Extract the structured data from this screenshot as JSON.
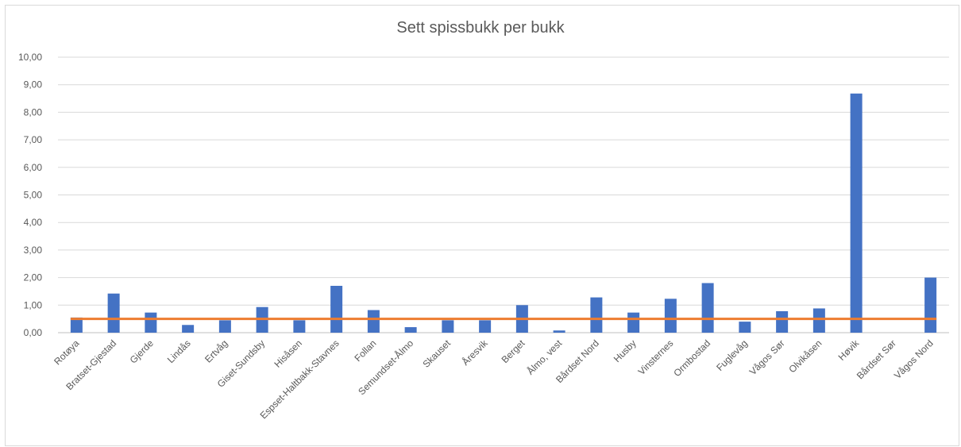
{
  "chart_data": {
    "type": "bar",
    "title": "Sett spissbukk per bukk",
    "categories": [
      "Rotøya",
      "Bratset-Gjestad",
      "Gjerde",
      "Lindås",
      "Ertvåg",
      "Giset-Sundsby",
      "Hisåsen",
      "Espset-Haltbakk-Stavnes",
      "Follan",
      "Semundset-Ålmo",
      "Skauset",
      "Åresvik",
      "Berget",
      "Ålmo, vest",
      "Bårdset Nord",
      "Husby",
      "Vinsternes",
      "Ormbostad",
      "Fuglevåg",
      "Vågos Sør",
      "Olvikåsen",
      "Høvik",
      "Bårdset Sør",
      "Vågos Nord"
    ],
    "series": [
      {
        "values": [
          0.55,
          1.42,
          0.73,
          0.28,
          0.45,
          0.93,
          0.45,
          1.7,
          0.82,
          0.2,
          0.45,
          0.45,
          1.0,
          0.08,
          1.28,
          0.73,
          1.23,
          1.8,
          0.4,
          0.78,
          0.88,
          8.68,
          0.0,
          2.0
        ],
        "color": "#4472c4"
      },
      {
        "type": "line",
        "values": [
          0.5,
          0.5,
          0.5,
          0.5,
          0.5,
          0.5,
          0.5,
          0.5,
          0.5,
          0.5,
          0.5,
          0.5,
          0.5,
          0.5,
          0.5,
          0.5,
          0.5,
          0.5,
          0.5,
          0.5,
          0.5,
          0.5,
          0.5,
          0.5
        ],
        "color": "#ed7d31"
      }
    ],
    "ylim": [
      0,
      10
    ],
    "yticks": [
      "0,00",
      "1,00",
      "2,00",
      "3,00",
      "4,00",
      "5,00",
      "6,00",
      "7,00",
      "8,00",
      "9,00",
      "10,00"
    ],
    "grid": true,
    "legend": "none"
  }
}
